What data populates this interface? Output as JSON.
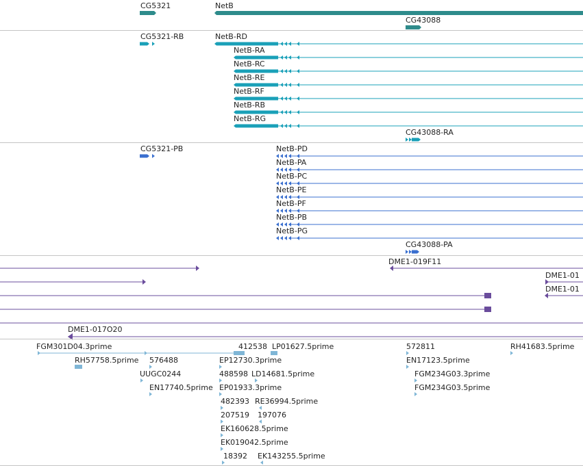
{
  "colors": {
    "gene": "#2e8b8b",
    "transcript": "#1aa0b8",
    "protein": "#3a6fcf",
    "clone": "#6a4c9c",
    "est": "#7fb6d6",
    "separator": "#c4c4c4"
  },
  "tracks": {
    "genes": {
      "items": [
        {
          "label": "CG5321",
          "strand": "+"
        },
        {
          "label": "NetB",
          "strand": "-"
        },
        {
          "label": "CG43088",
          "strand": "+"
        }
      ]
    },
    "transcripts": {
      "items": [
        {
          "label": "CG5321-RB"
        },
        {
          "label": "NetB-RD"
        },
        {
          "label": "NetB-RA"
        },
        {
          "label": "NetB-RC"
        },
        {
          "label": "NetB-RE"
        },
        {
          "label": "NetB-RF"
        },
        {
          "label": "NetB-RB"
        },
        {
          "label": "NetB-RG"
        },
        {
          "label": "CG43088-RA"
        }
      ]
    },
    "proteins": {
      "items": [
        {
          "label": "CG5321-PB"
        },
        {
          "label": "NetB-PD"
        },
        {
          "label": "NetB-PA"
        },
        {
          "label": "NetB-PC"
        },
        {
          "label": "NetB-PE"
        },
        {
          "label": "NetB-PF"
        },
        {
          "label": "NetB-PB"
        },
        {
          "label": "NetB-PG"
        },
        {
          "label": "CG43088-PA"
        }
      ]
    },
    "clones": {
      "items": [
        {
          "label": "DME1-019F11"
        },
        {
          "label": "DME1-01"
        },
        {
          "label": "DME1-01"
        },
        {
          "label": "DME1-017O20"
        }
      ]
    },
    "ests": {
      "items": [
        {
          "label": "FGM301D04.3prime"
        },
        {
          "label": "412538"
        },
        {
          "label": "LP01627.5prime"
        },
        {
          "label": "572811"
        },
        {
          "label": "RH41683.5prime"
        },
        {
          "label": "RH57758.5prime"
        },
        {
          "label": "576488"
        },
        {
          "label": "EP12730.3prime"
        },
        {
          "label": "EN17123.5prime"
        },
        {
          "label": "UUGC0244"
        },
        {
          "label": "488598"
        },
        {
          "label": "LD14681.5prime"
        },
        {
          "label": "FGM234G03.3prime"
        },
        {
          "label": "EN17740.5prime"
        },
        {
          "label": "EP01933.3prime"
        },
        {
          "label": "FGM234G03.5prime"
        },
        {
          "label": "482393"
        },
        {
          "label": "RE36994.5prime"
        },
        {
          "label": "207519"
        },
        {
          "label": "197076"
        },
        {
          "label": "EK160628.5prime"
        },
        {
          "label": "EK019042.5prime"
        },
        {
          "label": "18392"
        },
        {
          "label": "EK143255.5prime"
        }
      ]
    }
  }
}
